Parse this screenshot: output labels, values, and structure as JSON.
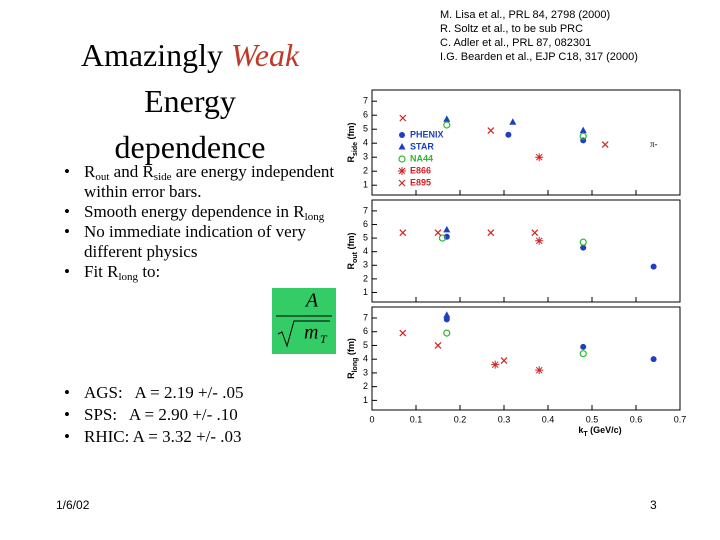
{
  "slide": {
    "title": [
      "Amazingly ",
      "Weak",
      "Energy",
      "dependence"
    ],
    "references": [
      "M. Lisa et al., PRL 84, 2798 (2000)",
      "R. Soltz et al., to be sub PRC",
      "C. Adler et al., PRL 87, 082301",
      "I.G. Bearden et al., EJP C18, 317 (2000)"
    ],
    "bullets": [
      [
        "R",
        "out",
        " and R",
        "side",
        " are energy independent within error bars."
      ],
      [
        "Smooth energy dependence in R",
        "long"
      ],
      [
        "No immediate indication of very different physics"
      ],
      [
        "Fit R",
        "long",
        " to:"
      ]
    ],
    "formula": {
      "numerator": "A",
      "denominator": "m",
      "subscript": "T"
    },
    "fits": [
      "AGS:   A = 2.19 +/- .05",
      "SPS:   A = 2.90 +/- .10",
      "RHIC: A = 3.32 +/- .03"
    ],
    "date": "1/6/02",
    "page": "3"
  },
  "chart_data": [
    {
      "type": "scatter",
      "ylabel": [
        "R",
        "side",
        " (fm)"
      ],
      "annotation": "π-",
      "legend": "left",
      "xlim": [
        0,
        0.7
      ],
      "xticks": [
        0,
        0.1,
        0.2,
        0.3,
        0.4,
        0.5,
        0.6,
        0.7
      ],
      "ylim": [
        0.3,
        7.8
      ],
      "yticks": [
        1,
        2,
        3,
        4,
        5,
        6,
        7
      ],
      "series": [
        {
          "name": "PHENIX",
          "color": "#1f3fbf",
          "marker": "circle",
          "x": [
            0.31,
            0.48
          ],
          "values": [
            4.6,
            4.2
          ]
        },
        {
          "name": "STAR",
          "color": "#1f3fbf",
          "marker": "triangle",
          "x": [
            0.17,
            0.32,
            0.48
          ],
          "values": [
            5.7,
            5.5,
            4.9
          ]
        },
        {
          "name": "NA44",
          "color": "#2eb82e",
          "marker": "open-circle",
          "x": [
            0.17,
            0.48
          ],
          "values": [
            5.3,
            4.5
          ]
        },
        {
          "name": "E866",
          "color": "#d62020",
          "marker": "star",
          "x": [
            0.38
          ],
          "values": [
            3.0
          ]
        },
        {
          "name": "E895",
          "color": "#d62020",
          "marker": "cross",
          "x": [
            0.07,
            0.27,
            0.53
          ],
          "values": [
            5.8,
            4.9,
            3.9
          ]
        }
      ]
    },
    {
      "type": "scatter",
      "ylabel": [
        "R",
        "out",
        " (fm)"
      ],
      "xlim": [
        0,
        0.7
      ],
      "xticks": [
        0,
        0.1,
        0.2,
        0.3,
        0.4,
        0.5,
        0.6,
        0.7
      ],
      "ylim": [
        0.3,
        7.8
      ],
      "yticks": [
        1,
        2,
        3,
        4,
        5,
        6,
        7
      ],
      "series": [
        {
          "color": "#1f3fbf",
          "marker": "circle",
          "x": [
            0.17,
            0.48,
            0.64
          ],
          "values": [
            5.1,
            4.3,
            2.9
          ]
        },
        {
          "color": "#1f3fbf",
          "marker": "triangle",
          "x": [
            0.17
          ],
          "values": [
            5.6
          ]
        },
        {
          "color": "#2eb82e",
          "marker": "open-circle",
          "x": [
            0.16,
            0.48
          ],
          "values": [
            5.0,
            4.7
          ]
        },
        {
          "color": "#d62020",
          "marker": "star",
          "x": [
            0.38
          ],
          "values": [
            4.8
          ]
        },
        {
          "color": "#d62020",
          "marker": "cross",
          "x": [
            0.07,
            0.15,
            0.27,
            0.37
          ],
          "values": [
            5.4,
            5.4,
            5.4,
            5.4
          ]
        }
      ]
    },
    {
      "type": "scatter",
      "ylabel": [
        "R",
        "long",
        " (fm)"
      ],
      "xlabel": [
        "k",
        "T",
        " (GeV/c)"
      ],
      "xlim": [
        0,
        0.7
      ],
      "xticks": [
        0,
        0.1,
        0.2,
        0.3,
        0.4,
        0.5,
        0.6,
        0.7
      ],
      "ylim": [
        0.3,
        7.8
      ],
      "yticks": [
        1,
        2,
        3,
        4,
        5,
        6,
        7
      ],
      "series": [
        {
          "color": "#1f3fbf",
          "marker": "circle",
          "x": [
            0.17,
            0.48,
            0.64
          ],
          "values": [
            6.9,
            4.9,
            4.0
          ]
        },
        {
          "color": "#1f3fbf",
          "marker": "triangle",
          "x": [
            0.17
          ],
          "values": [
            7.2
          ]
        },
        {
          "color": "#2eb82e",
          "marker": "open-circle",
          "x": [
            0.17,
            0.48
          ],
          "values": [
            5.9,
            4.4
          ]
        },
        {
          "color": "#d62020",
          "marker": "star",
          "x": [
            0.28,
            0.38
          ],
          "values": [
            3.6,
            3.2
          ]
        },
        {
          "color": "#d62020",
          "marker": "cross",
          "x": [
            0.07,
            0.15,
            0.3
          ],
          "values": [
            5.9,
            5.0,
            3.9
          ]
        }
      ]
    }
  ]
}
